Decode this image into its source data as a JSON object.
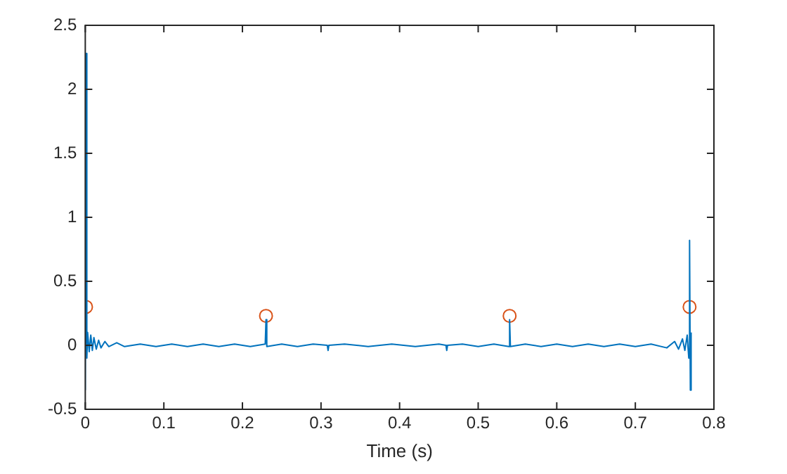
{
  "chart_data": {
    "type": "line",
    "xlabel": "Time (s)",
    "xlim": [
      0,
      0.8
    ],
    "xticks": [
      0,
      0.1,
      0.2,
      0.3,
      0.4,
      0.5,
      0.6,
      0.7,
      0.8
    ],
    "ylim": [
      -0.5,
      2.5
    ],
    "yticks": [
      -0.5,
      0,
      0.5,
      1,
      1.5,
      2,
      2.5
    ],
    "grid": false,
    "legend": false,
    "series": [
      {
        "type": "line",
        "color": "#0072bd",
        "marker": "none",
        "x": [
          0,
          0.001,
          0.002,
          0.003,
          0.005,
          0.007,
          0.009,
          0.011,
          0.014,
          0.017,
          0.02,
          0.025,
          0.03,
          0.04,
          0.05,
          0.07,
          0.09,
          0.11,
          0.13,
          0.15,
          0.17,
          0.19,
          0.21,
          0.229,
          0.23,
          0.231,
          0.25,
          0.27,
          0.29,
          0.308,
          0.309,
          0.31,
          0.33,
          0.36,
          0.39,
          0.42,
          0.45,
          0.459,
          0.46,
          0.461,
          0.48,
          0.5,
          0.52,
          0.539,
          0.54,
          0.541,
          0.56,
          0.58,
          0.6,
          0.62,
          0.64,
          0.66,
          0.68,
          0.7,
          0.72,
          0.74,
          0.75,
          0.755,
          0.76,
          0.763,
          0.766,
          0.768,
          0.769,
          0.77,
          0.771
        ],
        "values": [
          -0.35,
          2.28,
          -0.1,
          0.1,
          -0.05,
          0.08,
          -0.04,
          0.06,
          -0.03,
          0.04,
          -0.02,
          0.03,
          -0.01,
          0.02,
          -0.01,
          0.01,
          -0.01,
          0.01,
          -0.01,
          0.01,
          -0.01,
          0.01,
          -0.01,
          0.01,
          0.2,
          -0.01,
          0.01,
          -0.01,
          0.01,
          0,
          -0.04,
          0,
          0.01,
          -0.01,
          0.01,
          -0.01,
          0.01,
          0,
          -0.04,
          0,
          0.01,
          -0.01,
          0.01,
          -0.01,
          0.2,
          -0.01,
          0.01,
          -0.01,
          0.01,
          -0.01,
          0.01,
          -0.01,
          0.01,
          -0.01,
          0.01,
          -0.02,
          0.03,
          -0.03,
          0.05,
          -0.04,
          0.08,
          -0.1,
          0.82,
          -0.35,
          0.1
        ]
      },
      {
        "type": "scatter",
        "color": "#d95319",
        "marker": "circle",
        "x": [
          0.001,
          0.23,
          0.54,
          0.769
        ],
        "values": [
          0.3,
          0.23,
          0.23,
          0.3
        ]
      }
    ]
  }
}
